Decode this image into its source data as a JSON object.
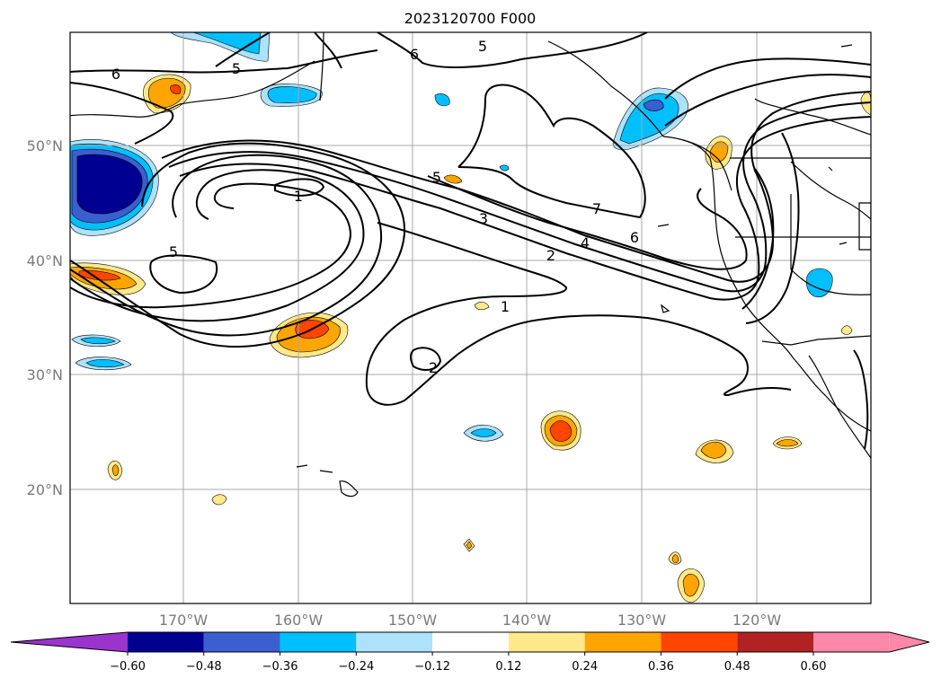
{
  "title": "2023120700 F000",
  "lat_labels": [
    "50°N",
    "40°N",
    "30°N",
    "20°N"
  ],
  "lon_labels": [
    "170°W",
    "160°W",
    "150°W",
    "140°W",
    "130°W",
    "120°W"
  ],
  "colorbar": {
    "tick_labels": [
      "−0.60",
      "−0.48",
      "−0.36",
      "−0.24",
      "−0.12",
      "0.12",
      "0.24",
      "0.36",
      "0.48",
      "0.60"
    ],
    "colors": [
      "#9a34cc",
      "#000090",
      "#3b5fd0",
      "#00bfff",
      "#ade2fc",
      "#ffffff",
      "#ffe98a",
      "#ffa500",
      "#ff4500",
      "#b22222",
      "#ff88aa"
    ]
  },
  "contour_labels": [
    "6",
    "5",
    "6",
    "5",
    "1",
    "5",
    "5",
    "3",
    "7",
    "6",
    "4",
    "2",
    "1",
    "2"
  ],
  "fill_colors": {
    "dark_blue": "#000090",
    "mid_blue": "#3b5fd0",
    "sky_blue": "#00bfff",
    "light_blue": "#ade2fc",
    "yellow": "#ffe98a",
    "orange": "#ffa500",
    "red_orange": "#ff4500",
    "dark_red": "#b22222"
  }
}
